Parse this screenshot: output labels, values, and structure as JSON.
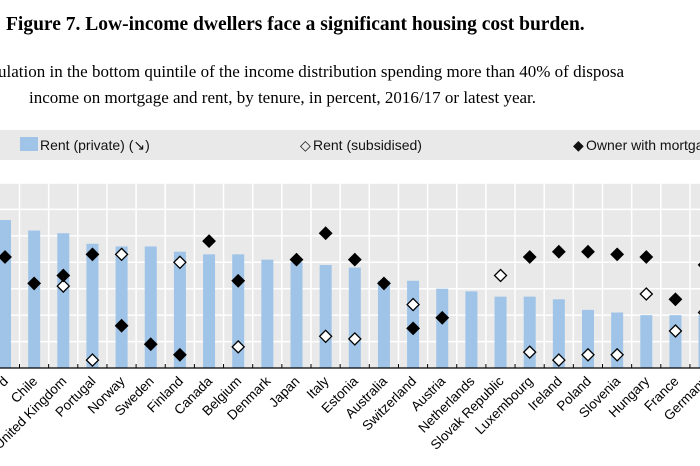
{
  "title": "Figure 7. Low-income dwellers face a significant housing cost burden.",
  "subtitle_line1": "ulation in the bottom quintile of the income distribution spending more than 40% of disposa",
  "subtitle_line2": "income on mortgage and rent, by tenure, in percent, 2016/17 or latest year.",
  "colors": {
    "bar": "#9fc4e8",
    "plot_bg": "#e9e9e9",
    "grid": "#ffffff"
  },
  "chart_data": {
    "type": "bar",
    "grid": true,
    "legend": "top",
    "ylim": [
      0,
      70
    ],
    "categories": [
      "d",
      "Chile",
      "United Kingdom",
      "Portugal",
      "Norway",
      "Sweden",
      "Finland",
      "Canada",
      "Belgium",
      "Denmark",
      "Japan",
      "Italy",
      "Estonia",
      "Australia",
      "Switzerland",
      "Austria",
      "Netherlands",
      "Slovak Republic",
      "Luxembourg",
      "Ireland",
      "Poland",
      "Slovenia",
      "Hungary",
      "France",
      "Germany"
    ],
    "series": [
      {
        "name": "Rent (private) (↘)",
        "marker": "bar",
        "values": [
          56,
          52,
          51,
          47,
          46,
          46,
          44,
          43,
          43,
          41,
          40,
          39,
          38,
          33,
          33,
          30,
          29,
          27,
          27,
          26,
          22,
          21,
          20,
          20,
          20
        ]
      },
      {
        "name": "Rent (subsidised)",
        "marker": "open-diamond",
        "values": [
          null,
          null,
          31,
          3,
          43,
          null,
          40,
          null,
          8,
          null,
          null,
          12,
          11,
          null,
          24,
          null,
          null,
          35,
          6,
          3,
          5,
          5,
          28,
          14,
          21
        ]
      },
      {
        "name": "Owner with mortga",
        "marker": "filled-diamond",
        "values": [
          42,
          32,
          35,
          43,
          16,
          9,
          5,
          48,
          33,
          null,
          41,
          51,
          41,
          32,
          15,
          19,
          null,
          null,
          42,
          44,
          44,
          43,
          42,
          26,
          39
        ]
      }
    ]
  }
}
